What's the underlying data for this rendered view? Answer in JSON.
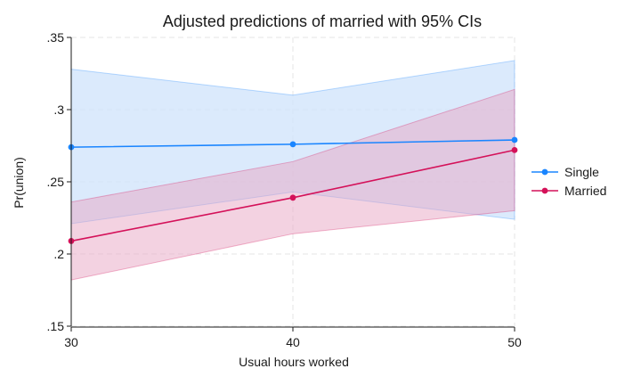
{
  "chart_data": {
    "type": "line",
    "title": "Adjusted predictions of married with 95% CIs",
    "xlabel": "Usual hours worked",
    "ylabel": "Pr(union)",
    "x": [
      30,
      40,
      50
    ],
    "x_ticks": [
      "30",
      "40",
      "50"
    ],
    "y_ticks": [
      ".15",
      ".2",
      ".25",
      ".3",
      ".35"
    ],
    "y_tick_values": [
      0.15,
      0.2,
      0.25,
      0.3,
      0.35
    ],
    "xlim": [
      30,
      50
    ],
    "ylim": [
      0.15,
      0.35
    ],
    "grid": true,
    "legend_position": "right",
    "series": [
      {
        "name": "Single",
        "color": "#1a85ff",
        "band_color": "#cfe3fb",
        "values": [
          0.274,
          0.276,
          0.279
        ],
        "ci_lower": [
          0.221,
          0.243,
          0.224
        ],
        "ci_upper": [
          0.328,
          0.31,
          0.334
        ]
      },
      {
        "name": "Married",
        "color": "#d41159",
        "band_color": "#e8a6c3",
        "values": [
          0.209,
          0.239,
          0.272
        ],
        "ci_lower": [
          0.182,
          0.214,
          0.23
        ],
        "ci_upper": [
          0.236,
          0.264,
          0.314
        ]
      }
    ]
  }
}
